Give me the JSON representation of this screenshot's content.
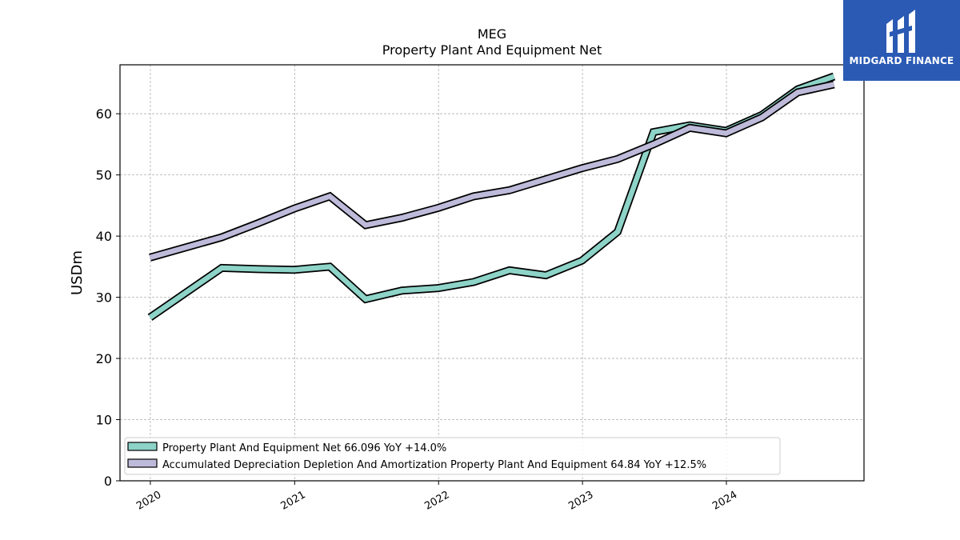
{
  "brand": {
    "name": "MIDGARD FINANCE",
    "bg_color": "#2a5ab4",
    "icon": "midgard-logo-icon"
  },
  "chart_data": {
    "type": "line",
    "title": "MEG",
    "subtitle": "Property Plant And Equipment Net",
    "xlabel": "",
    "ylabel": "USDm",
    "ylim": [
      0,
      68
    ],
    "yticks": [
      0,
      10,
      20,
      30,
      40,
      50,
      60
    ],
    "xticks": [
      "2020",
      "2021",
      "2022",
      "2023",
      "2024"
    ],
    "grid": true,
    "legend_position": "lower-left",
    "x": [
      "2019-12-31",
      "2020-06-30",
      "2020-09-30",
      "2020-12-31",
      "2021-03-31",
      "2021-06-30",
      "2021-09-30",
      "2021-12-31",
      "2022-03-31",
      "2022-06-30",
      "2022-09-30",
      "2022-12-31",
      "2023-03-31",
      "2023-06-30",
      "2023-09-30",
      "2023-12-31",
      "2024-03-31",
      "2024-06-30",
      "2024-09-30"
    ],
    "series": [
      {
        "name": "Property Plant And Equipment Net",
        "legend_label": "Property Plant And Equipment Net  66.096 YoY +14.0%",
        "color": "#8dd3c7",
        "values": [
          26.7,
          34.8,
          34.6,
          34.5,
          35.0,
          29.7,
          31.1,
          31.5,
          32.5,
          34.4,
          33.6,
          36.0,
          40.7,
          57.0,
          58.1,
          57.2,
          59.8,
          64.0,
          66.1
        ]
      },
      {
        "name": "Accumulated Depreciation Depletion And Amortization Property Plant And Equipment",
        "legend_label": "Accumulated Depreciation Depletion And Amortization Property Plant And Equipment  64.84 YoY +12.5%",
        "color": "#bebada",
        "values": [
          36.5,
          39.8,
          42.1,
          44.5,
          46.5,
          41.8,
          43.0,
          44.6,
          46.5,
          47.5,
          49.3,
          51.1,
          52.6,
          55.0,
          57.7,
          56.8,
          59.4,
          63.5,
          64.8
        ]
      }
    ]
  }
}
